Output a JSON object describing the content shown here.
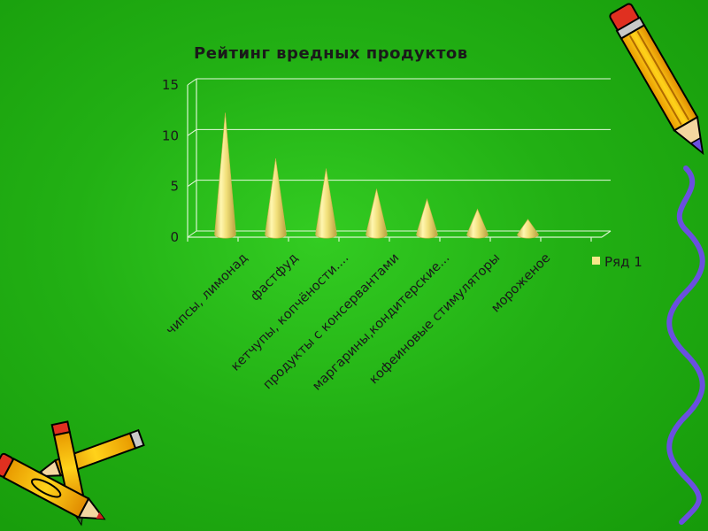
{
  "chart_data": {
    "type": "bar",
    "bar_shape": "cone-3d",
    "title": "Рейтинг вредных продуктов",
    "xlabel": "",
    "ylabel": "",
    "categories": [
      "чипсы, лимонад",
      "фастфуд",
      "кетчупы, копчёности....",
      "продукты с консервантами",
      "маргарины,кондитерские...",
      "кофеиновые стимуляторы",
      "мороженое"
    ],
    "series": [
      {
        "name": "Ряд 1",
        "values": [
          12,
          7.5,
          6.5,
          4.5,
          3.5,
          2.5,
          1.5
        ]
      }
    ],
    "ylim": [
      0,
      15
    ],
    "yticks": [
      "0",
      "5",
      "10",
      "15"
    ],
    "grid": true,
    "legend_position": "right",
    "colors": {
      "cone_light": "#fff6b0",
      "cone_mid": "#f2e07a",
      "cone_dark": "#c9b24a",
      "legend_swatch": "#f5e88a",
      "background": "#22b014",
      "decor_wave": "#6a4fe0"
    }
  },
  "decorations": [
    {
      "name": "pencil-icon",
      "position": "top-right"
    },
    {
      "name": "wavy-line",
      "position": "right-edge"
    },
    {
      "name": "crossed-pencils-icon",
      "position": "bottom-left"
    }
  ]
}
